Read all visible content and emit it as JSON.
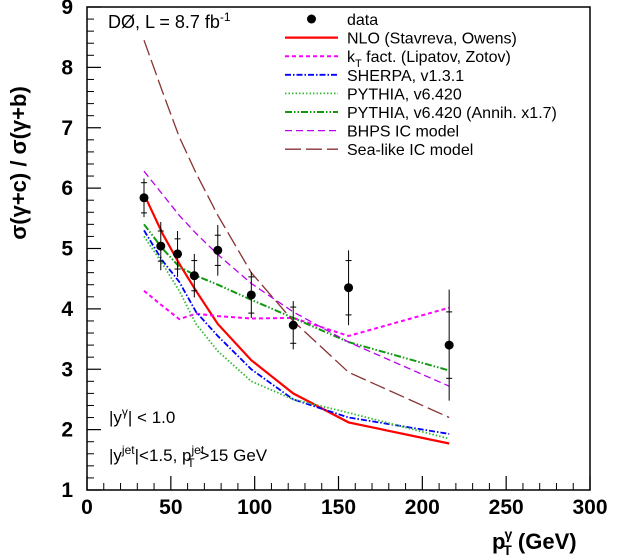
{
  "chart_data": {
    "type": "line",
    "title": "",
    "experiment_label": "DØ, L = 8.7 fb",
    "experiment_label_sup": "-1",
    "xlabel": "p",
    "xlabel_sup": "γ",
    "xlabel_sub": "T",
    "xlabel_unit": " (GeV)",
    "ylabel": "σ(γ+c) / σ(γ+b)",
    "xlim": [
      0,
      300
    ],
    "ylim": [
      1,
      9
    ],
    "xticks": [
      0,
      50,
      100,
      150,
      200,
      250,
      300
    ],
    "yticks": [
      1,
      2,
      3,
      4,
      5,
      6,
      7,
      8,
      9
    ],
    "annotations": {
      "line1_a": "|y",
      "line1_sup": "γ",
      "line1_b": "| < 1.0",
      "line2_a": "|y",
      "line2_sup": "jet",
      "line2_b": "|<1.5, p",
      "line2_sup2": "jet",
      "line2_sub2": "T",
      "line2_c": ">15 GeV"
    },
    "data_points": {
      "name": "data",
      "x": [
        34,
        44,
        54,
        64,
        78,
        98,
        123,
        156,
        216
      ],
      "y": [
        5.84,
        5.04,
        4.91,
        4.55,
        4.97,
        4.23,
        3.73,
        4.35,
        3.4
      ],
      "err_stat": [
        0.25,
        0.25,
        0.25,
        0.25,
        0.25,
        0.3,
        0.3,
        0.45,
        0.55
      ],
      "err_tot": [
        0.32,
        0.4,
        0.38,
        0.36,
        0.42,
        0.38,
        0.4,
        0.62,
        0.92
      ]
    },
    "series": [
      {
        "name": "NLO (Stavreva, Owens)",
        "color": "#ff0000",
        "dash": "",
        "width": 2.2,
        "x": [
          34,
          45,
          55,
          65,
          78,
          98,
          123,
          156,
          216
        ],
        "y": [
          5.9,
          5.25,
          4.75,
          4.3,
          3.75,
          3.15,
          2.6,
          2.12,
          1.77
        ]
      },
      {
        "name": "k",
        "name_sub": "T",
        "name_rest": " fact. (Lipatov, Zotov)",
        "color": "#ff00ff",
        "dash": "4,3",
        "width": 2,
        "x": [
          34,
          45,
          55,
          65,
          78,
          98,
          123,
          156,
          216
        ],
        "y": [
          4.3,
          4.05,
          3.83,
          3.92,
          3.88,
          3.84,
          3.85,
          3.55,
          4.02
        ]
      },
      {
        "name": "SHERPA, v1.3.1",
        "color": "#0000ff",
        "dash": "6,2,1.5,2",
        "width": 1.8,
        "x": [
          34,
          45,
          55,
          65,
          78,
          98,
          123,
          156,
          216
        ],
        "y": [
          5.3,
          4.8,
          4.45,
          3.95,
          3.55,
          3.0,
          2.5,
          2.2,
          1.93
        ]
      },
      {
        "name": "PYTHIA, v6.420",
        "color": "#33bb33",
        "dash": "1.5,2",
        "width": 1.8,
        "x": [
          34,
          45,
          55,
          65,
          78,
          98,
          123,
          156,
          216
        ],
        "y": [
          5.2,
          4.75,
          4.3,
          3.75,
          3.3,
          2.8,
          2.5,
          2.28,
          1.85
        ]
      },
      {
        "name": "PYTHIA, v6.420 (Annih. x1.7)",
        "color": "#119911",
        "dash": "7,2,1.5,2,1.5,2",
        "width": 2,
        "x": [
          34,
          45,
          55,
          65,
          78,
          98,
          123,
          156,
          216
        ],
        "y": [
          5.4,
          5.0,
          4.7,
          4.55,
          4.4,
          4.15,
          3.85,
          3.45,
          2.98
        ]
      },
      {
        "name": "BHPS IC model",
        "color": "#bb00ee",
        "dash": "7,4",
        "width": 1.3,
        "x": [
          34,
          45,
          55,
          65,
          78,
          98,
          123,
          156,
          216
        ],
        "y": [
          6.28,
          5.9,
          5.55,
          5.25,
          4.9,
          4.42,
          3.95,
          3.45,
          2.72
        ]
      },
      {
        "name": "Sea-like IC model",
        "color": "#883333",
        "dash": "16,5",
        "width": 1.3,
        "x": [
          34,
          45,
          55,
          65,
          78,
          98,
          123,
          156,
          216
        ],
        "y": [
          8.45,
          7.6,
          6.85,
          6.25,
          5.55,
          4.6,
          3.8,
          2.95,
          2.2
        ]
      }
    ]
  }
}
